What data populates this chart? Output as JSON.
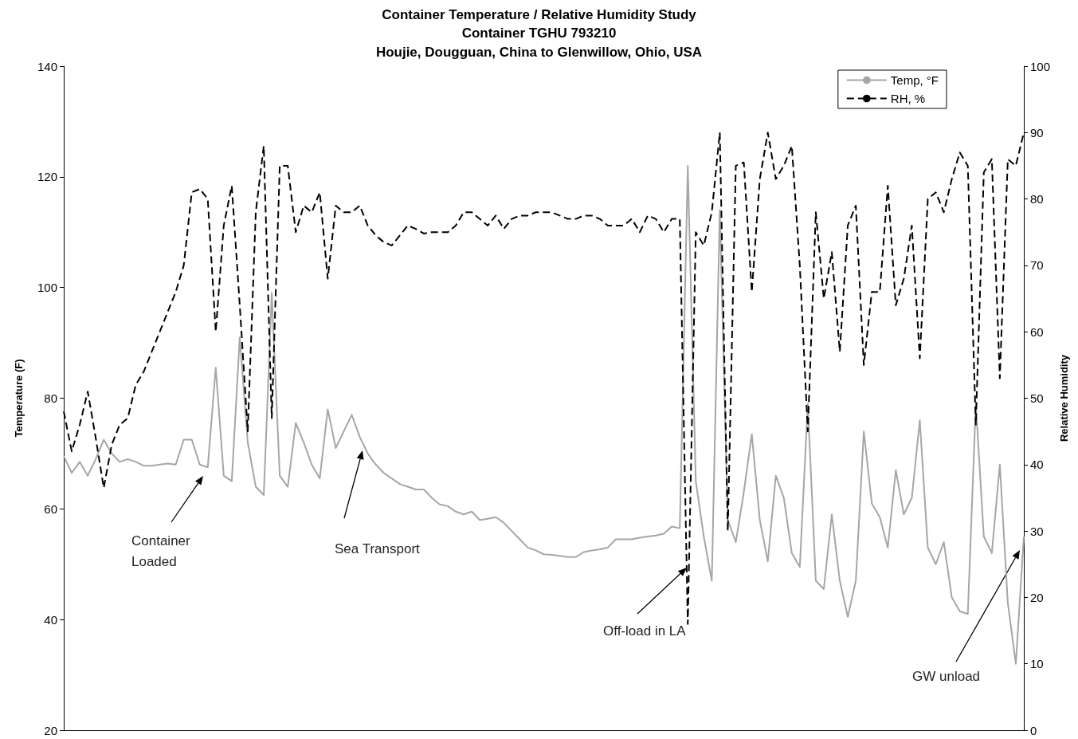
{
  "chart_data": {
    "type": "line",
    "title": "Container Temperature / Relative Humidity Study",
    "subtitle": "Container TGHU 793210\nHoujie, Dougguan, China to Glenwillow, Ohio, USA",
    "ylabel": "Temperature (F)",
    "y2label": "Relative Humidity",
    "categories": [
      null,
      null,
      null,
      null,
      null,
      null,
      null,
      null,
      null,
      null,
      null,
      null,
      null,
      null,
      null,
      null,
      null,
      null,
      null,
      null,
      null,
      null,
      null,
      null,
      null,
      null,
      null,
      null,
      null,
      null,
      null,
      null,
      null,
      null,
      null,
      null,
      null,
      null,
      null,
      null,
      null,
      null,
      null,
      null,
      null,
      null,
      null,
      null,
      null,
      null,
      null,
      null,
      null,
      null,
      null,
      null,
      null,
      null,
      null,
      null,
      null,
      null,
      null,
      null,
      null,
      null,
      null,
      null,
      null,
      null,
      null,
      null,
      null,
      null,
      null,
      null,
      null,
      null,
      null,
      null,
      null,
      null,
      null,
      null,
      null,
      null,
      null,
      null,
      null,
      null,
      null,
      null,
      null,
      null,
      null,
      null,
      null,
      null,
      null,
      null,
      null,
      null,
      null,
      null,
      null,
      null,
      null,
      null,
      null,
      null,
      null,
      null,
      null,
      null,
      null,
      null,
      null,
      null,
      null,
      null,
      null
    ],
    "series": [
      {
        "name": "Temp, °F",
        "color": "#a6a6a6",
        "line_style": "solid",
        "values": [
          69.5,
          66.5,
          68.5,
          66,
          69,
          72.5,
          70,
          68.5,
          69,
          68.5,
          67.8,
          67.8,
          68,
          68.2,
          68,
          72.5,
          72.5,
          68,
          67.5,
          85.5,
          66,
          65,
          91,
          72,
          64,
          62.5,
          99,
          66,
          64,
          75.5,
          72,
          68,
          65.5,
          78,
          71,
          74,
          77,
          73,
          70,
          68,
          66.5,
          65.5,
          64.5,
          64,
          63.5,
          63.5,
          62,
          60.8,
          60.5,
          59.5,
          59,
          59.5,
          58,
          58.2,
          58.5,
          57.5,
          56,
          54.5,
          53,
          52.5,
          51.8,
          51.7,
          51.5,
          51.3,
          51.3,
          52.2,
          52.5,
          52.7,
          53,
          54.5,
          54.5,
          54.5,
          54.8,
          55,
          55.2,
          55.5,
          56.8,
          56.5,
          122,
          65,
          55,
          47,
          114,
          58,
          54,
          63,
          73.5,
          58,
          50.5,
          66,
          62,
          52,
          49.5,
          79,
          47,
          45.5,
          59,
          47,
          40.5,
          47,
          74,
          61,
          58.5,
          53,
          67,
          59,
          62,
          76,
          53,
          50,
          54,
          44,
          41.5,
          41,
          79,
          55,
          52,
          68,
          43,
          32,
          55
        ]
      },
      {
        "name": "RH, %",
        "color": "#000000",
        "line_style": "dashed",
        "axis": "y2",
        "values": [
          48,
          42,
          46,
          51,
          44,
          36.5,
          43,
          46,
          47,
          52,
          54,
          57,
          60,
          63,
          66,
          70,
          81,
          81.5,
          80,
          60,
          76,
          82,
          64,
          45,
          78,
          88,
          47,
          85,
          85,
          75,
          79,
          78,
          81,
          68,
          79,
          78,
          78,
          79,
          76,
          74.5,
          73.5,
          73,
          74.5,
          76,
          75.5,
          74.8,
          75,
          75,
          75,
          76,
          78,
          78,
          77,
          76,
          77.5,
          75.5,
          77,
          77.5,
          77.5,
          78,
          78,
          78,
          77.5,
          77,
          77,
          77.5,
          77.5,
          77,
          76,
          76,
          76,
          77,
          75,
          77.5,
          77,
          75,
          77,
          77,
          16,
          75,
          73,
          78,
          90,
          30,
          85,
          85.5,
          66,
          83,
          90,
          83,
          85,
          88,
          70,
          45,
          78,
          65,
          72,
          57,
          76,
          79,
          55,
          66,
          66,
          82,
          64,
          68,
          76,
          56,
          80,
          81,
          78,
          83,
          87,
          85,
          46,
          84,
          86,
          53,
          86,
          85,
          90
        ]
      }
    ],
    "ylim": [
      20,
      140
    ],
    "yticks": [
      20,
      40,
      60,
      80,
      100,
      120,
      140
    ],
    "y2lim": [
      0,
      100
    ],
    "y2ticks": [
      0,
      10,
      20,
      30,
      40,
      50,
      60,
      70,
      80,
      90,
      100
    ],
    "legend": "top right",
    "annotations": [
      "Container\nLoaded",
      "Sea Transport",
      "Off-load in LA",
      "GW unload"
    ]
  }
}
